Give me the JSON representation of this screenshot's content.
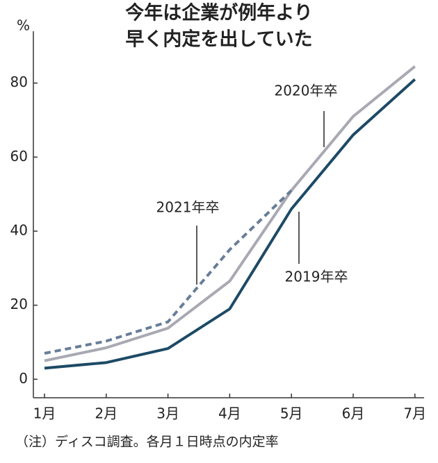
{
  "chart_data": {
    "type": "line",
    "title": [
      "今年は企業が例年より",
      "早く内定を出していた"
    ],
    "y_unit": "%",
    "categories": [
      "1月",
      "2月",
      "3月",
      "4月",
      "5月",
      "6月",
      "7月"
    ],
    "series": [
      {
        "name": "2019年卒",
        "color": "#1d4a66",
        "dashed": false,
        "values": [
          3,
          4.5,
          8.3,
          19,
          46,
          66,
          81
        ]
      },
      {
        "name": "2020年卒",
        "color": "#a9a9b3",
        "dashed": false,
        "values": [
          5,
          8.5,
          13.8,
          26.5,
          51,
          71,
          84.5
        ]
      },
      {
        "name": "2021年卒",
        "color": "#687d98",
        "dashed": true,
        "values": [
          7,
          10.3,
          15.5,
          35,
          51,
          null,
          null
        ]
      }
    ],
    "ylim": [
      -5,
      94
    ],
    "yticks": [
      0,
      20,
      40,
      60,
      80
    ],
    "note": "（注）ディスコ調査。各月１日時点の内定率"
  }
}
